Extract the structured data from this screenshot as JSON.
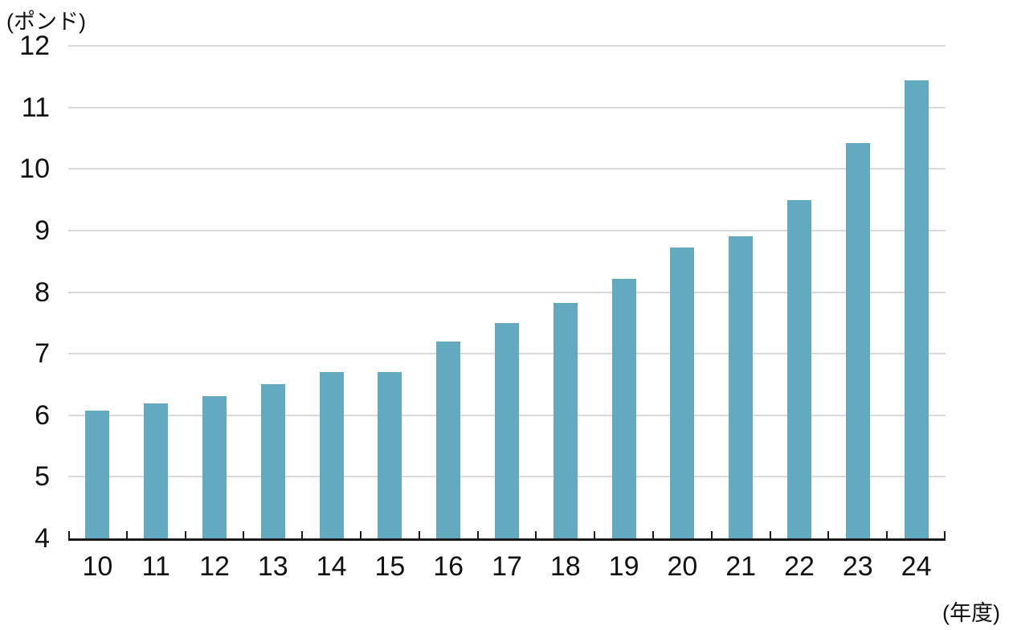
{
  "chart_data": {
    "type": "bar",
    "title": "",
    "unit_label": "(ポンド)",
    "x_axis_label": "(年度)",
    "categories": [
      "10",
      "11",
      "12",
      "13",
      "14",
      "15",
      "16",
      "17",
      "18",
      "19",
      "20",
      "21",
      "22",
      "23",
      "24"
    ],
    "values": [
      6.08,
      6.19,
      6.31,
      6.5,
      6.7,
      6.7,
      7.2,
      7.5,
      7.83,
      8.21,
      8.72,
      8.91,
      9.5,
      10.42,
      11.44
    ],
    "ylim": [
      4,
      12
    ],
    "yticks": [
      4,
      5,
      6,
      7,
      8,
      9,
      10,
      11,
      12
    ],
    "grid": "horizontal-gridlines-at-integer-ticks",
    "legend": "none",
    "bar_color": "#63aac1",
    "gridline_color": "#d9d9d9",
    "axis_color": "#1a1a1a",
    "text_color": "#111111"
  }
}
